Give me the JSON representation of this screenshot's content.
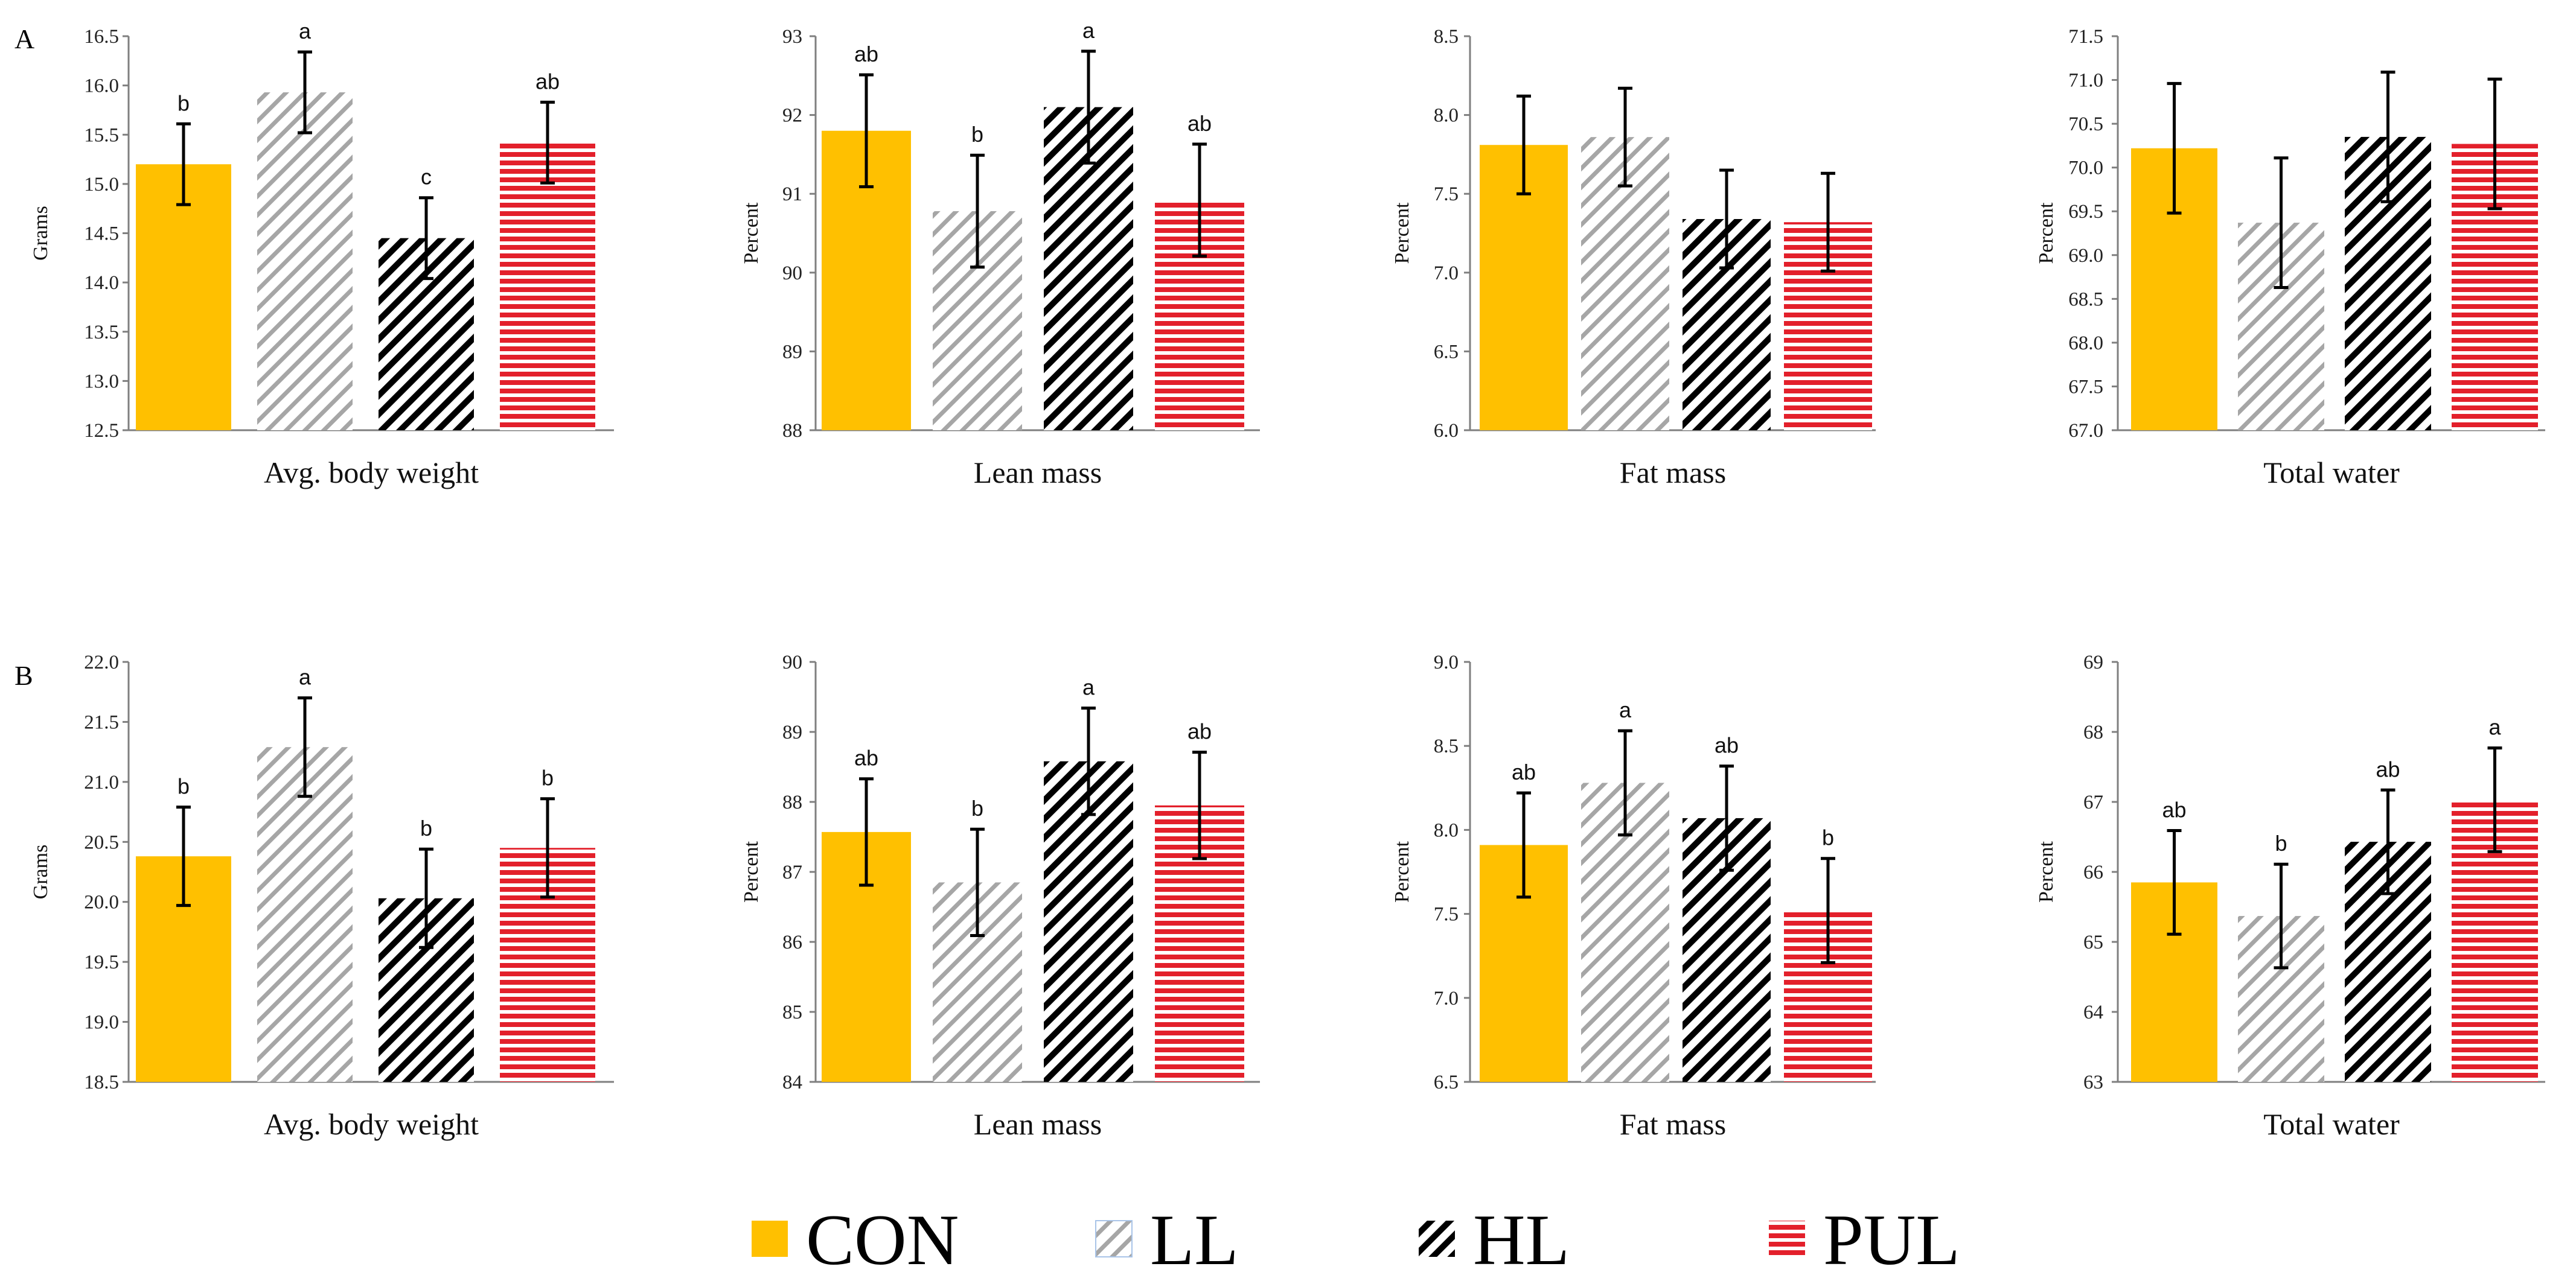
{
  "panels": [
    {
      "label": "A"
    },
    {
      "label": "B"
    }
  ],
  "legend": [
    {
      "key": "CON",
      "label": "CON"
    },
    {
      "key": "LL",
      "label": "LL"
    },
    {
      "key": "HL",
      "label": "HL"
    },
    {
      "key": "PUL",
      "label": "PUL"
    }
  ],
  "colors": {
    "CON": "#FFC000",
    "LL": "#A6A6A6",
    "HL": "#000000",
    "PUL": "#E3202B",
    "axis": "#7f7f7f",
    "error_bar": "#000000"
  },
  "chart_data": [
    {
      "panel": "A",
      "type": "bar",
      "title": "",
      "xlabel": "Avg. body weight",
      "ylabel": "Grams",
      "ylim": [
        12.5,
        16.5
      ],
      "yticks": [
        "12.5",
        "13.0",
        "13.5",
        "14.0",
        "14.5",
        "15.0",
        "15.5",
        "16.0",
        "16.5"
      ],
      "categories": [
        "CON",
        "LL",
        "HL",
        "PUL"
      ],
      "values": [
        15.2,
        15.93,
        14.45,
        15.42
      ],
      "errors": [
        0.41,
        0.41,
        0.41,
        0.41
      ],
      "sig_labels": [
        "b",
        "a",
        "c",
        "ab"
      ],
      "grid": false
    },
    {
      "panel": "A",
      "type": "bar",
      "title": "",
      "xlabel": "Lean mass",
      "ylabel": "Percent",
      "ylim": [
        88,
        93
      ],
      "yticks": [
        "88",
        "89",
        "90",
        "91",
        "92",
        "93"
      ],
      "categories": [
        "CON",
        "LL",
        "HL",
        "PUL"
      ],
      "values": [
        91.8,
        90.78,
        92.1,
        90.92
      ],
      "errors": [
        0.71,
        0.71,
        0.71,
        0.71
      ],
      "sig_labels": [
        "ab",
        "b",
        "a",
        "ab"
      ],
      "grid": false
    },
    {
      "panel": "A",
      "type": "bar",
      "title": "",
      "xlabel": "Fat mass",
      "ylabel": "Percent",
      "ylim": [
        6.0,
        8.5
      ],
      "yticks": [
        "6.0",
        "6.5",
        "7.0",
        "7.5",
        "8.0",
        "8.5"
      ],
      "categories": [
        "CON",
        "LL",
        "HL",
        "PUL"
      ],
      "values": [
        7.81,
        7.86,
        7.34,
        7.32
      ],
      "errors": [
        0.31,
        0.31,
        0.31,
        0.31
      ],
      "sig_labels": [
        "",
        "",
        "",
        ""
      ],
      "grid": false
    },
    {
      "panel": "A",
      "type": "bar",
      "title": "",
      "xlabel": "Total water",
      "ylabel": "Percent",
      "ylim": [
        67.0,
        71.5
      ],
      "yticks": [
        "67.0",
        "67.5",
        "68.0",
        "68.5",
        "69.0",
        "69.5",
        "70.0",
        "70.5",
        "71.0",
        "71.5"
      ],
      "categories": [
        "CON",
        "LL",
        "HL",
        "PUL"
      ],
      "values": [
        70.22,
        69.37,
        70.35,
        70.27
      ],
      "errors": [
        0.74,
        0.74,
        0.74,
        0.74
      ],
      "sig_labels": [
        "",
        "",
        "",
        ""
      ],
      "grid": false
    },
    {
      "panel": "B",
      "type": "bar",
      "title": "",
      "xlabel": "Avg. body weight",
      "ylabel": "Grams",
      "ylim": [
        18.5,
        22.0
      ],
      "yticks": [
        "18.5",
        "19.0",
        "19.5",
        "20.0",
        "20.5",
        "21.0",
        "21.5",
        "22.0"
      ],
      "categories": [
        "CON",
        "LL",
        "HL",
        "PUL"
      ],
      "values": [
        20.38,
        21.29,
        20.03,
        20.45
      ],
      "errors": [
        0.41,
        0.41,
        0.41,
        0.41
      ],
      "sig_labels": [
        "b",
        "a",
        "b",
        "b"
      ],
      "grid": false
    },
    {
      "panel": "B",
      "type": "bar",
      "title": "",
      "xlabel": "Lean mass",
      "ylabel": "Percent",
      "ylim": [
        84,
        90
      ],
      "yticks": [
        "84",
        "85",
        "86",
        "87",
        "88",
        "89",
        "90"
      ],
      "categories": [
        "CON",
        "LL",
        "HL",
        "PUL"
      ],
      "values": [
        87.57,
        86.85,
        88.58,
        87.95
      ],
      "errors": [
        0.76,
        0.76,
        0.76,
        0.76
      ],
      "sig_labels": [
        "ab",
        "b",
        "a",
        "ab"
      ],
      "grid": false
    },
    {
      "panel": "B",
      "type": "bar",
      "title": "",
      "xlabel": "Fat mass",
      "ylabel": "Percent",
      "ylim": [
        6.5,
        9.0
      ],
      "yticks": [
        "6.5",
        "7.0",
        "7.5",
        "8.0",
        "8.5",
        "9.0"
      ],
      "categories": [
        "CON",
        "LL",
        "HL",
        "PUL"
      ],
      "values": [
        7.91,
        8.28,
        8.07,
        7.52
      ],
      "errors": [
        0.31,
        0.31,
        0.31,
        0.31
      ],
      "sig_labels": [
        "ab",
        "a",
        "ab",
        "b"
      ],
      "grid": false
    },
    {
      "panel": "B",
      "type": "bar",
      "title": "",
      "xlabel": "Total water",
      "ylabel": "Percent",
      "ylim": [
        63,
        69
      ],
      "yticks": [
        "63",
        "64",
        "65",
        "66",
        "67",
        "68",
        "69"
      ],
      "categories": [
        "CON",
        "LL",
        "HL",
        "PUL"
      ],
      "values": [
        65.85,
        65.37,
        66.43,
        67.03
      ],
      "errors": [
        0.74,
        0.74,
        0.74,
        0.74
      ],
      "sig_labels": [
        "ab",
        "b",
        "ab",
        "a"
      ],
      "grid": false
    }
  ]
}
